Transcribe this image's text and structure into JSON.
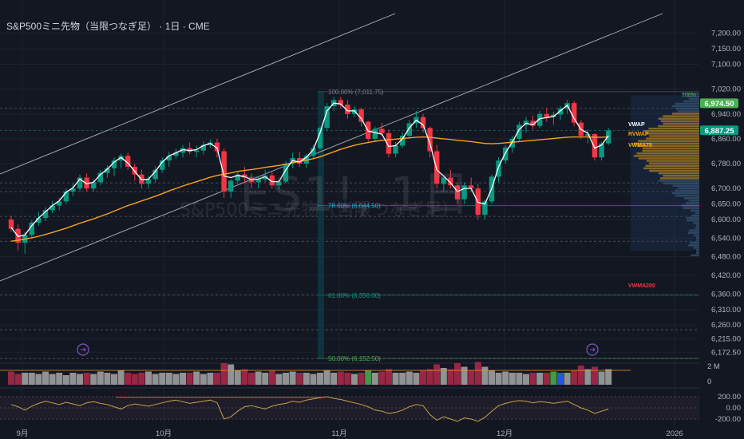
{
  "header": {
    "title": "S&P500ミニ先物（当限つなぎ足） · 1日 · CME"
  },
  "watermark": {
    "symbol": "ES1!, 1日",
    "name": "S&P500ミニ先物（当限つなぎ足）"
  },
  "price_axis": {
    "ticks": [
      "7,200.00",
      "7,150.00",
      "7,100.00",
      "7,020.00",
      "6,940.00",
      "6,860.00",
      "6,780.00",
      "6,700.00",
      "6,650.00",
      "6,600.00",
      "6,540.00",
      "6,480.00",
      "6,420.00",
      "6,360.00",
      "6,310.00",
      "6,260.00",
      "6,215.00",
      "6,172.50"
    ],
    "last_price": "6,887.25",
    "last_price_color": "#089981",
    "high_price": "6,974.50",
    "high_price_color": "#4caf50"
  },
  "time_axis": {
    "labels": [
      "9月",
      "10月",
      "11月",
      "12月",
      "2026"
    ]
  },
  "volume_axis": {
    "ticks": [
      "2 M",
      "0"
    ]
  },
  "osc_axis": {
    "ticks": [
      "200.00",
      "0.00",
      "-200.00"
    ]
  },
  "fibonacci": [
    {
      "label": "100.00% (7,011.75)",
      "color": "#787b86"
    },
    {
      "label": "78.60% (6,644.50)",
      "color": "#00bcd4"
    },
    {
      "label": "61.80% (6,356.00)",
      "color": "#089981"
    },
    {
      "label": "50.00% (6,152.50)",
      "color": "#4caf50"
    }
  ],
  "indicator_labels": [
    {
      "label": "VWAP",
      "color": "#ffffff"
    },
    {
      "label": "RVWAP",
      "color": "#ff9800"
    },
    {
      "label": "VWMA75",
      "color": "#ffb300"
    },
    {
      "label": "VWMA200",
      "color": "#f23645"
    }
  ],
  "profile_label": "100%",
  "colors": {
    "up": "#089981",
    "down": "#f23645",
    "vwap": "#ffffff",
    "vwma": "#f7a21b",
    "grid": "#1e2230"
  },
  "chart_data": {
    "type": "candlestick",
    "title": "S&P500ミニ先物（当限つなぎ足） · 1日 · CME",
    "ylim": [
      6150,
      7230
    ],
    "candles": [
      [
        6600,
        6612,
        6560,
        6570
      ],
      [
        6570,
        6585,
        6500,
        6525
      ],
      [
        6525,
        6560,
        6490,
        6550
      ],
      [
        6550,
        6598,
        6540,
        6590
      ],
      [
        6590,
        6625,
        6580,
        6605
      ],
      [
        6605,
        6640,
        6595,
        6630
      ],
      [
        6630,
        6660,
        6620,
        6645
      ],
      [
        6645,
        6670,
        6630,
        6658
      ],
      [
        6658,
        6700,
        6650,
        6690
      ],
      [
        6690,
        6715,
        6675,
        6700
      ],
      [
        6700,
        6745,
        6690,
        6735
      ],
      [
        6735,
        6748,
        6690,
        6700
      ],
      [
        6700,
        6730,
        6690,
        6720
      ],
      [
        6720,
        6760,
        6710,
        6750
      ],
      [
        6750,
        6775,
        6735,
        6765
      ],
      [
        6765,
        6800,
        6740,
        6790
      ],
      [
        6790,
        6812,
        6765,
        6805
      ],
      [
        6805,
        6815,
        6760,
        6770
      ],
      [
        6770,
        6780,
        6725,
        6745
      ],
      [
        6745,
        6760,
        6700,
        6715
      ],
      [
        6715,
        6740,
        6700,
        6730
      ],
      [
        6730,
        6772,
        6720,
        6760
      ],
      [
        6760,
        6800,
        6750,
        6790
      ],
      [
        6790,
        6818,
        6770,
        6805
      ],
      [
        6805,
        6828,
        6795,
        6815
      ],
      [
        6815,
        6840,
        6800,
        6830
      ],
      [
        6830,
        6848,
        6810,
        6818
      ],
      [
        6818,
        6838,
        6800,
        6822
      ],
      [
        6822,
        6852,
        6810,
        6840
      ],
      [
        6840,
        6858,
        6830,
        6848
      ],
      [
        6848,
        6860,
        6800,
        6820
      ],
      [
        6820,
        6830,
        6670,
        6690
      ],
      [
        6690,
        6730,
        6670,
        6725
      ],
      [
        6725,
        6752,
        6715,
        6745
      ],
      [
        6745,
        6770,
        6720,
        6735
      ],
      [
        6735,
        6748,
        6700,
        6720
      ],
      [
        6720,
        6740,
        6700,
        6730
      ],
      [
        6730,
        6760,
        6720,
        6742
      ],
      [
        6742,
        6752,
        6700,
        6710
      ],
      [
        6710,
        6728,
        6695,
        6722
      ],
      [
        6722,
        6788,
        6715,
        6780
      ],
      [
        6780,
        6815,
        6765,
        6798
      ],
      [
        6798,
        6818,
        6770,
        6780
      ],
      [
        6780,
        6812,
        6765,
        6805
      ],
      [
        6805,
        6840,
        6795,
        6830
      ],
      [
        6830,
        6900,
        6825,
        6895
      ],
      [
        6895,
        6975,
        6885,
        6965
      ],
      [
        6965,
        6995,
        6950,
        6985
      ],
      [
        6985,
        6995,
        6960,
        6970
      ],
      [
        6970,
        6985,
        6925,
        6940
      ],
      [
        6940,
        6965,
        6930,
        6955
      ],
      [
        6955,
        6960,
        6900,
        6915
      ],
      [
        6915,
        6918,
        6850,
        6860
      ],
      [
        6860,
        6900,
        6850,
        6892
      ],
      [
        6892,
        6912,
        6870,
        6878
      ],
      [
        6878,
        6890,
        6800,
        6812
      ],
      [
        6812,
        6850,
        6800,
        6838
      ],
      [
        6838,
        6880,
        6830,
        6870
      ],
      [
        6870,
        6920,
        6860,
        6910
      ],
      [
        6910,
        6950,
        6895,
        6930
      ],
      [
        6930,
        6940,
        6880,
        6895
      ],
      [
        6895,
        6900,
        6800,
        6820
      ],
      [
        6820,
        6840,
        6700,
        6715
      ],
      [
        6715,
        6740,
        6690,
        6735
      ],
      [
        6735,
        6760,
        6700,
        6710
      ],
      [
        6710,
        6720,
        6650,
        6665
      ],
      [
        6665,
        6720,
        6650,
        6710
      ],
      [
        6710,
        6735,
        6690,
        6700
      ],
      [
        6700,
        6715,
        6600,
        6615
      ],
      [
        6615,
        6665,
        6600,
        6658
      ],
      [
        6658,
        6745,
        6650,
        6738
      ],
      [
        6738,
        6800,
        6720,
        6790
      ],
      [
        6790,
        6840,
        6780,
        6832
      ],
      [
        6832,
        6870,
        6815,
        6860
      ],
      [
        6860,
        6915,
        6850,
        6905
      ],
      [
        6905,
        6930,
        6880,
        6918
      ],
      [
        6918,
        6935,
        6890,
        6902
      ],
      [
        6902,
        6950,
        6895,
        6940
      ],
      [
        6940,
        6960,
        6915,
        6930
      ],
      [
        6930,
        6948,
        6905,
        6938
      ],
      [
        6938,
        6965,
        6920,
        6958
      ],
      [
        6958,
        6985,
        6940,
        6975
      ],
      [
        6975,
        6982,
        6900,
        6912
      ],
      [
        6912,
        6920,
        6860,
        6870
      ],
      [
        6870,
        6890,
        6845,
        6875
      ],
      [
        6875,
        6878,
        6790,
        6800
      ],
      [
        6800,
        6850,
        6790,
        6845
      ],
      [
        6845,
        6895,
        6840,
        6887
      ]
    ],
    "vwap": [
      6575,
      6545,
      6550,
      6580,
      6605,
      6625,
      6645,
      6660,
      6688,
      6702,
      6730,
      6715,
      6720,
      6745,
      6762,
      6785,
      6800,
      6782,
      6755,
      6728,
      6730,
      6755,
      6785,
      6805,
      6815,
      6825,
      6822,
      6825,
      6838,
      6845,
      6830,
      6740,
      6735,
      6742,
      6738,
      6728,
      6730,
      6738,
      6722,
      6722,
      6760,
      6790,
      6785,
      6800,
      6825,
      6880,
      6950,
      6975,
      6972,
      6950,
      6950,
      6925,
      6885,
      6880,
      6875,
      6835,
      6838,
      6860,
      6895,
      6920,
      6905,
      6845,
      6760,
      6740,
      6718,
      6690,
      6700,
      6700,
      6655,
      6650,
      6700,
      6770,
      6815,
      6850,
      6890,
      6910,
      6905,
      6925,
      6928,
      6932,
      6950,
      6968,
      6925,
      6890,
      6878,
      6830,
      6840,
      6870
    ],
    "vwma75": [
      6530,
      6533,
      6537,
      6541,
      6546,
      6552,
      6558,
      6565,
      6572,
      6580,
      6588,
      6595,
      6602,
      6610,
      6618,
      6627,
      6636,
      6645,
      6652,
      6660,
      6667,
      6675,
      6683,
      6692,
      6700,
      6708,
      6715,
      6722,
      6729,
      6736,
      6742,
      6746,
      6750,
      6755,
      6758,
      6761,
      6764,
      6768,
      6771,
      6774,
      6778,
      6783,
      6787,
      6791,
      6796,
      6802,
      6810,
      6818,
      6826,
      6833,
      6839,
      6844,
      6848,
      6852,
      6855,
      6857,
      6859,
      6861,
      6863,
      6865,
      6866,
      6865,
      6862,
      6860,
      6858,
      6855,
      6853,
      6851,
      6848,
      6845,
      6844,
      6845,
      6847,
      6849,
      6851,
      6853,
      6855,
      6857,
      6859,
      6861,
      6863,
      6865,
      6866,
      6866,
      6866,
      6865,
      6865,
      6866
    ],
    "volume": [
      1.1,
      0.9,
      1.0,
      1.0,
      0.9,
      1.1,
      0.9,
      1.0,
      0.8,
      1.0,
      0.9,
      1.0,
      0.9,
      1.1,
      1.0,
      0.9,
      1.2,
      1.0,
      0.9,
      1.0,
      1.1,
      0.9,
      1.0,
      1.0,
      0.9,
      1.0,
      1.0,
      1.1,
      0.9,
      1.0,
      1.0,
      1.8,
      1.7,
      1.2,
      1.3,
      1.0,
      1.1,
      1.0,
      1.2,
      0.9,
      1.0,
      1.1,
      1.0,
      1.0,
      0.9,
      1.0,
      1.2,
      1.0,
      1.1,
      1.0,
      0.9,
      1.0,
      1.2,
      1.0,
      1.1,
      1.3,
      1.0,
      1.0,
      1.1,
      1.0,
      1.2,
      1.3,
      1.7,
      1.4,
      1.3,
      1.8,
      1.5,
      1.2,
      1.9,
      1.5,
      1.2,
      1.0,
      1.1,
      1.0,
      1.0,
      0.9,
      1.0,
      1.0,
      1.0,
      1.1,
      1.0,
      1.0,
      1.2,
      1.6,
      1.3,
      1.5,
      1.1,
      1.3
    ],
    "oscillator": [
      60,
      20,
      -40,
      30,
      80,
      120,
      90,
      60,
      100,
      70,
      40,
      90,
      110,
      80,
      60,
      20,
      -20,
      40,
      70,
      50,
      30,
      60,
      90,
      120,
      140,
      110,
      80,
      100,
      120,
      140,
      90,
      -200,
      -160,
      -60,
      20,
      40,
      10,
      -20,
      30,
      60,
      80,
      120,
      100,
      140,
      160,
      180,
      200,
      170,
      150,
      120,
      90,
      60,
      20,
      -40,
      -60,
      -100,
      -80,
      -40,
      20,
      60,
      40,
      -120,
      -220,
      -160,
      -200,
      -240,
      -180,
      -200,
      -240,
      -170,
      -60,
      40,
      80,
      110,
      130,
      120,
      90,
      110,
      100,
      80,
      100,
      120,
      60,
      0,
      -40,
      -100,
      -60,
      -20
    ],
    "price_axis_range": [
      6150,
      7230
    ]
  }
}
